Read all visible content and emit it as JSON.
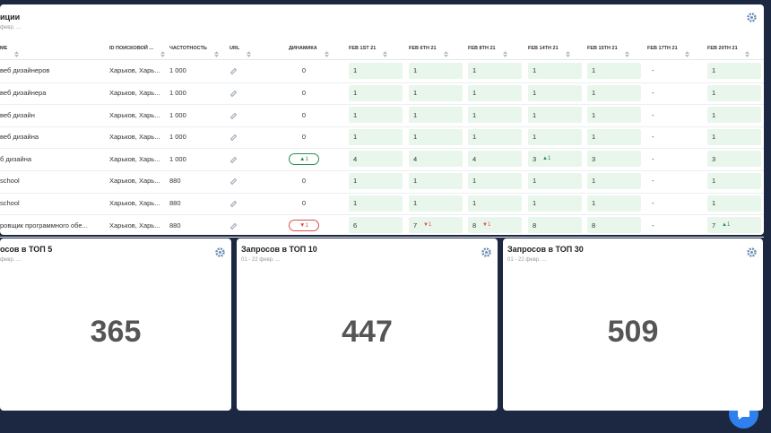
{
  "top_panel": {
    "title": "иции",
    "subtitle": "февр. ...",
    "columns": [
      "МЕ",
      "ID ПОИСКОВОЙ ...",
      "ЧАСТОТНОСТЬ",
      "URL",
      "ДИНАМИКА",
      "FEB 1ST 21",
      "FEB 6TH 21",
      "FEB 8TH 21",
      "FEB 14TH 21",
      "FEB 15TH 21",
      "FEB 17TH 21",
      "FEB 20TH 21"
    ],
    "rows": [
      {
        "keyword": "веб дизайнеров",
        "region": "Харьков, Харь...",
        "frequency": "1 000",
        "dynamics": "0",
        "positions": [
          {
            "value": "1"
          },
          {
            "value": "1"
          },
          {
            "value": "1"
          },
          {
            "value": "1"
          },
          {
            "value": "1"
          },
          {
            "value": "-"
          },
          {
            "value": "1"
          }
        ]
      },
      {
        "keyword": "веб дизайнера",
        "region": "Харьков, Харь...",
        "frequency": "1 000",
        "dynamics": "0",
        "positions": [
          {
            "value": "1"
          },
          {
            "value": "1"
          },
          {
            "value": "1"
          },
          {
            "value": "1"
          },
          {
            "value": "1"
          },
          {
            "value": "-"
          },
          {
            "value": "1"
          }
        ]
      },
      {
        "keyword": "веб дизайн",
        "region": "Харьков, Харь...",
        "frequency": "1 000",
        "dynamics": "0",
        "positions": [
          {
            "value": "1"
          },
          {
            "value": "1"
          },
          {
            "value": "1"
          },
          {
            "value": "1"
          },
          {
            "value": "1"
          },
          {
            "value": "-"
          },
          {
            "value": "1"
          }
        ]
      },
      {
        "keyword": "веб дизайна",
        "region": "Харьков, Харь...",
        "frequency": "1 000",
        "dynamics": "0",
        "positions": [
          {
            "value": "1"
          },
          {
            "value": "1"
          },
          {
            "value": "1"
          },
          {
            "value": "1"
          },
          {
            "value": "1"
          },
          {
            "value": "-"
          },
          {
            "value": "1"
          }
        ]
      },
      {
        "keyword": "б дизайна",
        "region": "Харьков, Харь...",
        "frequency": "1 000",
        "dynamics": "▲1",
        "positions": [
          {
            "value": "4"
          },
          {
            "value": "4"
          },
          {
            "value": "4"
          },
          {
            "value": "3",
            "change": "▲1"
          },
          {
            "value": "3"
          },
          {
            "value": "-"
          },
          {
            "value": "3"
          }
        ]
      },
      {
        "keyword": "school",
        "region": "Харьков, Харь...",
        "frequency": "880",
        "dynamics": "0",
        "positions": [
          {
            "value": "1"
          },
          {
            "value": "1"
          },
          {
            "value": "1"
          },
          {
            "value": "1"
          },
          {
            "value": "1"
          },
          {
            "value": "-"
          },
          {
            "value": "1"
          }
        ]
      },
      {
        "keyword": "school",
        "region": "Харьков, Харь...",
        "frequency": "880",
        "dynamics": "0",
        "positions": [
          {
            "value": "1"
          },
          {
            "value": "1"
          },
          {
            "value": "1"
          },
          {
            "value": "1"
          },
          {
            "value": "1"
          },
          {
            "value": "-"
          },
          {
            "value": "1"
          }
        ]
      },
      {
        "keyword": "ровщик программного обе...",
        "region": "Харьков, Харь...",
        "frequency": "880",
        "dynamics": "▼1",
        "positions": [
          {
            "value": "6"
          },
          {
            "value": "7",
            "change": "▼1"
          },
          {
            "value": "8",
            "change": "▼1"
          },
          {
            "value": "8"
          },
          {
            "value": "8"
          },
          {
            "value": "-"
          },
          {
            "value": "7",
            "change": "▲1"
          }
        ]
      }
    ]
  },
  "widgets": [
    {
      "title": "осов в ТОП 5",
      "subtitle": "февр. ...",
      "value": 365
    },
    {
      "title": "Запросов в ТОП 10",
      "subtitle": "01 - 22 февр. ...",
      "value": 447
    },
    {
      "title": "Запросов в ТОП 30",
      "subtitle": "01 - 22 февр. ...",
      "value": 509
    }
  ]
}
